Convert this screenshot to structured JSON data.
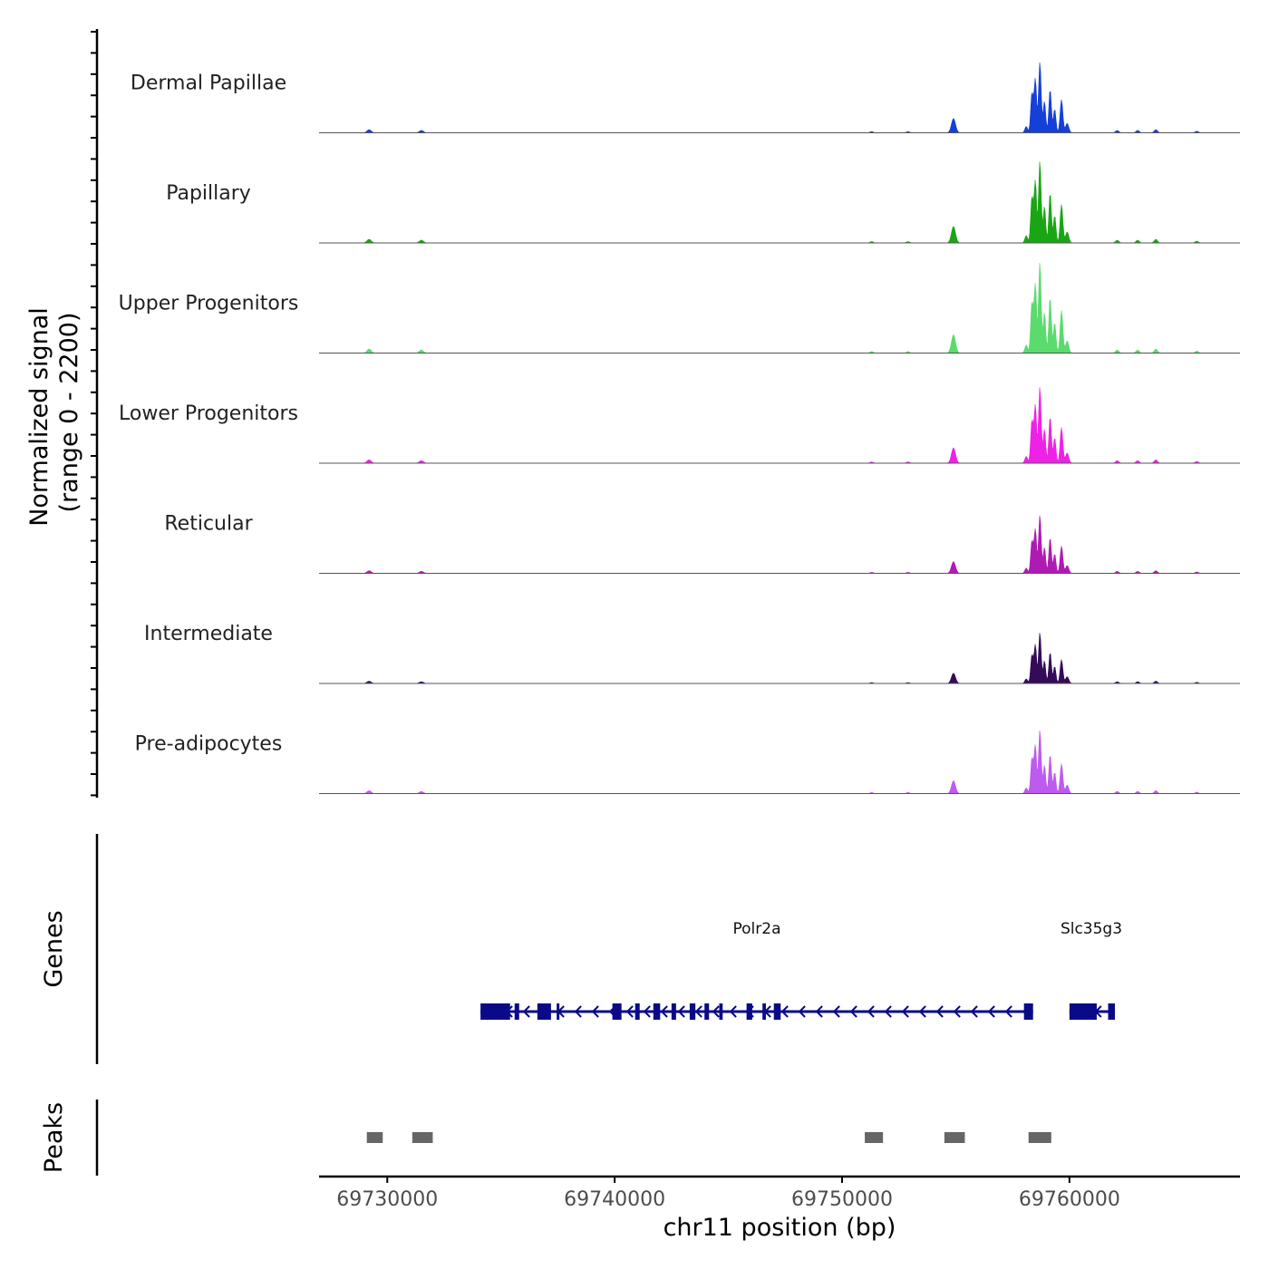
{
  "chart_data": {
    "type": "coverage",
    "title": "",
    "chromosome": "chr11",
    "xlabel": "chr11 position (bp)",
    "ylabel_line1": "Normalized signal",
    "ylabel_line2": "(range 0 - 2200)",
    "ylim": [
      0,
      2200
    ],
    "xlim": [
      69727000,
      69767500
    ],
    "x_ticks": [
      69730000,
      69740000,
      69750000,
      69760000
    ],
    "x_tick_labels": [
      "69730000",
      "69740000",
      "69750000",
      "69760000"
    ],
    "tracks": [
      {
        "name": "Dermal Papillae",
        "color": "#1540d8",
        "scale": 0.78
      },
      {
        "name": "Papillary",
        "color": "#1aa614",
        "scale": 0.9
      },
      {
        "name": "Upper Progenitors",
        "color": "#5bdb6e",
        "scale": 1.0
      },
      {
        "name": "Lower Progenitors",
        "color": "#ee22e6",
        "scale": 0.84
      },
      {
        "name": "Reticular",
        "color": "#b01ab4",
        "scale": 0.64
      },
      {
        "name": "Intermediate",
        "color": "#330b58",
        "scale": 0.56
      },
      {
        "name": "Pre-adipocytes",
        "color": "#bd5bef",
        "scale": 0.7
      }
    ],
    "signal_peaks": [
      {
        "pos": 69729200,
        "w": 90,
        "v": 0.04
      },
      {
        "pos": 69731500,
        "w": 90,
        "v": 0.03
      },
      {
        "pos": 69751300,
        "w": 70,
        "v": 0.015
      },
      {
        "pos": 69752900,
        "w": 70,
        "v": 0.015
      },
      {
        "pos": 69754900,
        "w": 90,
        "v": 0.18
      },
      {
        "pos": 69758100,
        "w": 60,
        "v": 0.08
      },
      {
        "pos": 69758350,
        "w": 55,
        "v": 0.5
      },
      {
        "pos": 69758500,
        "w": 55,
        "v": 0.68
      },
      {
        "pos": 69758700,
        "w": 55,
        "v": 0.9
      },
      {
        "pos": 69758900,
        "w": 55,
        "v": 0.4
      },
      {
        "pos": 69759150,
        "w": 55,
        "v": 0.55
      },
      {
        "pos": 69759350,
        "w": 55,
        "v": 0.3
      },
      {
        "pos": 69759650,
        "w": 60,
        "v": 0.42
      },
      {
        "pos": 69759900,
        "w": 70,
        "v": 0.12
      },
      {
        "pos": 69762100,
        "w": 70,
        "v": 0.03
      },
      {
        "pos": 69763000,
        "w": 70,
        "v": 0.03
      },
      {
        "pos": 69763800,
        "w": 70,
        "v": 0.04
      },
      {
        "pos": 69765600,
        "w": 70,
        "v": 0.02
      }
    ],
    "genes": [
      {
        "name": "Polr2a",
        "start": 69734100,
        "end": 69758400,
        "strand": "-",
        "exons": [
          [
            69734100,
            69735400
          ],
          [
            69735600,
            69735800
          ],
          [
            69736600,
            69737200
          ],
          [
            69737450,
            69737550
          ],
          [
            69739900,
            69740300
          ],
          [
            69740900,
            69741100
          ],
          [
            69741700,
            69742000
          ],
          [
            69742500,
            69742700
          ],
          [
            69743300,
            69743550
          ],
          [
            69743950,
            69744150
          ],
          [
            69744600,
            69744750
          ],
          [
            69745800,
            69746050
          ],
          [
            69746500,
            69746650
          ],
          [
            69747000,
            69747300
          ],
          [
            69758000,
            69758400
          ]
        ]
      },
      {
        "name": "Slc35g3",
        "start": 69760000,
        "end": 69762000,
        "strand": "-",
        "exons": [
          [
            69760000,
            69761200
          ],
          [
            69761700,
            69762000
          ]
        ]
      }
    ],
    "peak_regions": [
      [
        69729100,
        69729800
      ],
      [
        69731100,
        69732000
      ],
      [
        69751000,
        69751800
      ],
      [
        69754500,
        69755400
      ],
      [
        69758200,
        69759200
      ]
    ],
    "panels": [
      "Genes",
      "Peaks"
    ]
  }
}
